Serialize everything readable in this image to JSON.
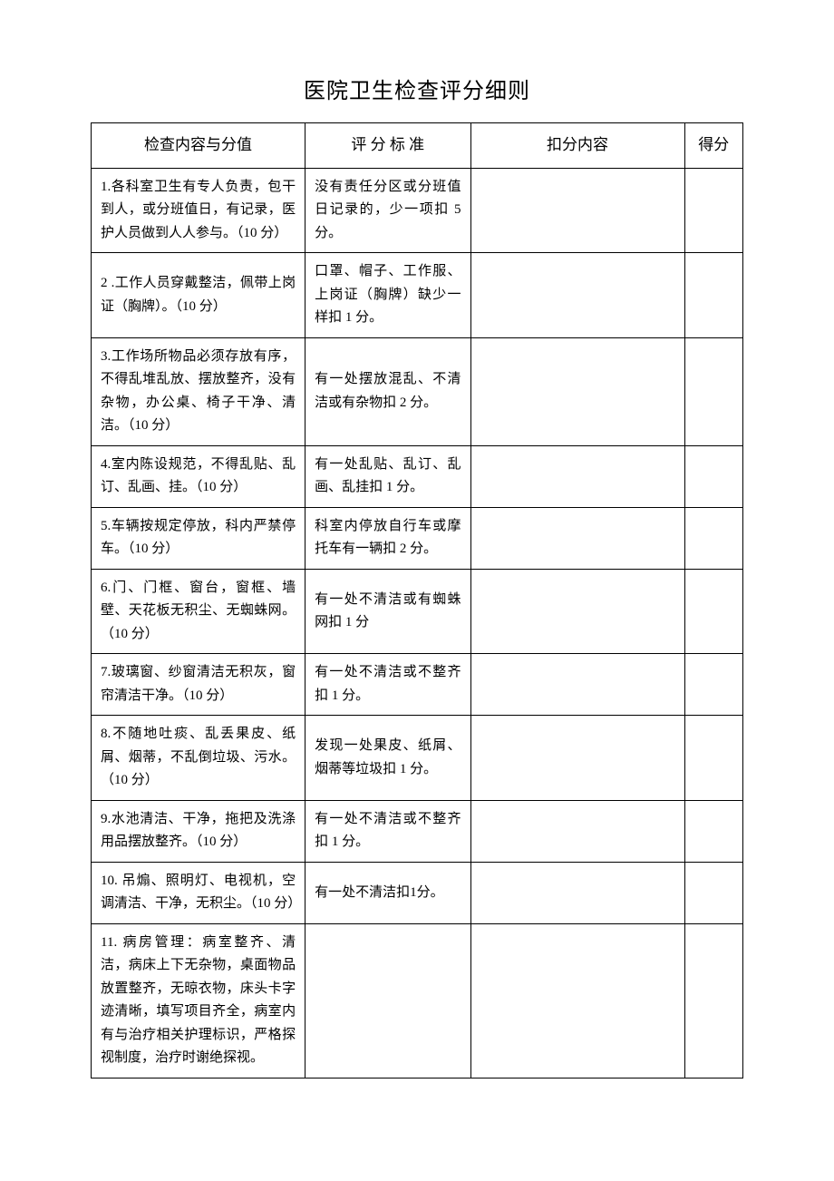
{
  "title": "医院卫生检查评分细则",
  "headers": {
    "content": "检查内容与分值",
    "criteria": "评 分 标 准",
    "deduction": "扣分内容",
    "score": "得分"
  },
  "rows": [
    {
      "content": "1.各科室卫生有专人负责，包干到人，或分班值日，有记录，医护人员做到人人参与。（10 分）",
      "criteria": "没有责任分区或分班值日记录的，少一项扣 5 分。",
      "deduction": "",
      "score": ""
    },
    {
      "content": "2 .工作人员穿戴整洁，佩带上岗证（胸牌）。（10 分）",
      "criteria": "口罩、帽子、工作服、上岗证（胸牌）缺少一样扣 1 分。",
      "deduction": "",
      "score": ""
    },
    {
      "content": "3.工作场所物品必须存放有序，不得乱堆乱放、摆放整齐，没有 杂物，办公桌、椅子干净、清洁。（10 分）",
      "criteria": "有一处摆放混乱、不清洁或有杂物扣  2 分。",
      "deduction": "",
      "score": ""
    },
    {
      "content": "4.室内陈设规范，不得乱贴、乱订、乱画、挂。（10 分）",
      "criteria": "有一处乱贴、乱订、乱画、乱挂扣 1 分。",
      "deduction": "",
      "score": ""
    },
    {
      "content": "5.车辆按规定停放，科内严禁停车。（10 分）",
      "criteria": "科室内停放自行车或摩托车有一辆扣 2 分。",
      "deduction": "",
      "score": ""
    },
    {
      "content": "6.门、门框、窗台，窗框、墙壁、天花板无积尘、无蜘蛛网。（10 分）",
      "criteria": "有一处不清洁或有蜘蛛网扣 1 分",
      "deduction": "",
      "score": ""
    },
    {
      "content": "7.玻璃窗、纱窗清洁无积灰，窗帘清洁干净。（10 分）",
      "criteria": "有一处不清洁或不整齐扣 1 分。",
      "deduction": "",
      "score": ""
    },
    {
      "content": "8.不随地吐痰、乱丢果皮、纸屑、烟蒂，不乱倒垃圾、污水。（10 分）",
      "criteria": "发现一处果皮、纸屑、烟蒂等垃圾扣 1 分。",
      "deduction": "",
      "score": ""
    },
    {
      "content": "9.水池清洁、干净，拖把及洗涤用品摆放整齐。（10 分）",
      "criteria": "有一处不清洁或不整齐扣 1 分。",
      "deduction": "",
      "score": ""
    },
    {
      "content": "10. 吊煽、照明灯、电视机，空调清洁、干净，无积尘。（10 分）",
      "criteria": "有一处不清洁扣1分。",
      "deduction": "",
      "score": ""
    },
    {
      "content": "11. 病房管理：病室整齐、清洁，病床上下无杂物，桌面物品放置整齐，无晾衣物，床头卡字迹清晰，填写项目齐全，病室内有与治疗相关护理标识，严格探视制度，治疗时谢绝探视。",
      "criteria": "",
      "deduction": "",
      "score": ""
    }
  ],
  "styling": {
    "background_color": "#ffffff",
    "border_color": "#000000",
    "text_color": "#000000",
    "title_fontsize": 24,
    "header_fontsize": 17,
    "cell_fontsize": 15,
    "font_family": "SimSun"
  }
}
